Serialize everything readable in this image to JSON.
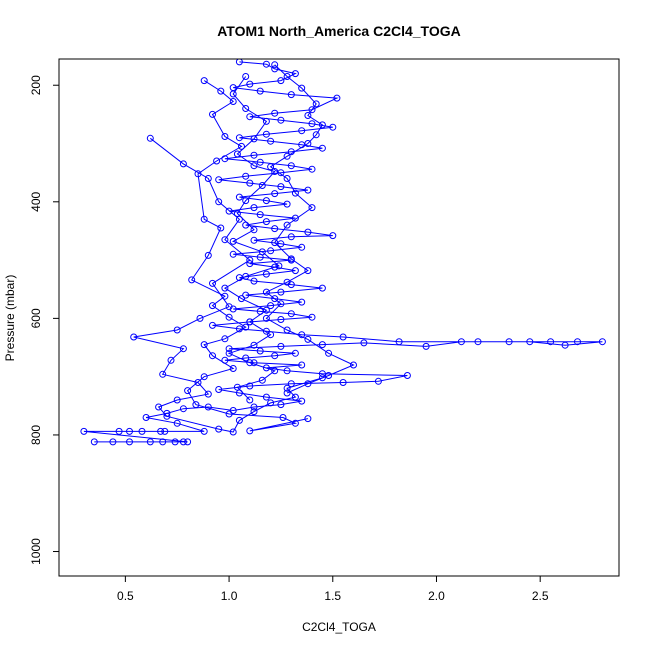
{
  "chart_data": {
    "type": "line",
    "title": "ATOM1 North_America C2Cl4_TOGA",
    "xlabel": "C2Cl4_TOGA",
    "ylabel": "Pressure (mbar)",
    "xlim": [
      0.18,
      2.88
    ],
    "ylim": [
      1042,
      155
    ],
    "y_reversed": true,
    "x_ticks": [
      0.5,
      1.0,
      1.5,
      2.0,
      2.5
    ],
    "x_tick_labels": [
      "0.5",
      "1.0",
      "1.5",
      "2.0",
      "2.5"
    ],
    "y_ticks": [
      200,
      400,
      600,
      800,
      1000
    ],
    "y_tick_labels": [
      "200",
      "400",
      "600",
      "800",
      "1000"
    ],
    "series_color": "#0000ff",
    "marker": "open-circle",
    "grid": false,
    "legend": "none",
    "series": [
      {
        "points": [
          [
            0.35,
            812
          ],
          [
            0.44,
            812
          ],
          [
            0.52,
            812
          ],
          [
            0.62,
            812
          ],
          [
            0.68,
            812
          ],
          [
            0.74,
            812
          ],
          [
            0.78,
            812
          ],
          [
            0.8,
            812
          ],
          [
            0.3,
            794
          ],
          [
            0.47,
            794
          ],
          [
            0.52,
            794
          ],
          [
            0.58,
            794
          ],
          [
            0.67,
            794
          ],
          [
            0.69,
            794
          ],
          [
            0.88,
            794
          ],
          [
            0.75,
            780
          ],
          [
            0.6,
            770
          ],
          [
            0.7,
            763
          ],
          [
            0.78,
            755
          ],
          [
            0.9,
            752
          ],
          [
            1.02,
            758
          ],
          [
            1.12,
            752
          ],
          [
            1.25,
            748
          ],
          [
            1.35,
            742
          ],
          [
            1.18,
            735
          ],
          [
            1.05,
            728
          ],
          [
            0.95,
            722
          ],
          [
            1.1,
            716
          ],
          [
            1.3,
            712
          ],
          [
            1.55,
            710
          ],
          [
            1.72,
            708
          ],
          [
            1.86,
            698
          ],
          [
            1.45,
            695
          ],
          [
            1.28,
            690
          ],
          [
            1.18,
            685
          ],
          [
            1.35,
            680
          ],
          [
            1.12,
            676
          ],
          [
            0.98,
            672
          ],
          [
            1.08,
            668
          ],
          [
            1.22,
            664
          ],
          [
            1.32,
            660
          ],
          [
            1.15,
            656
          ],
          [
            1.0,
            652
          ],
          [
            1.25,
            648
          ],
          [
            1.45,
            645
          ],
          [
            1.65,
            642
          ],
          [
            1.95,
            648
          ],
          [
            2.12,
            640
          ],
          [
            2.35,
            640
          ],
          [
            2.55,
            640
          ],
          [
            2.68,
            640
          ],
          [
            2.8,
            640
          ],
          [
            2.62,
            646
          ],
          [
            2.45,
            640
          ],
          [
            2.2,
            640
          ],
          [
            1.82,
            640
          ],
          [
            1.55,
            632
          ],
          [
            1.35,
            628
          ],
          [
            1.18,
            622
          ],
          [
            1.05,
            618
          ],
          [
            0.92,
            612
          ],
          [
            1.1,
            606
          ],
          [
            1.25,
            602
          ],
          [
            1.4,
            598
          ],
          [
            1.3,
            592
          ],
          [
            1.15,
            588
          ],
          [
            1.02,
            584
          ],
          [
            1.2,
            578
          ],
          [
            1.35,
            572
          ],
          [
            1.22,
            566
          ],
          [
            1.08,
            560
          ],
          [
            1.25,
            555
          ],
          [
            1.45,
            548
          ],
          [
            1.3,
            542
          ],
          [
            1.12,
            536
          ],
          [
            1.05,
            530
          ],
          [
            1.18,
            524
          ],
          [
            1.32,
            518
          ],
          [
            1.22,
            512
          ],
          [
            1.1,
            506
          ],
          [
            1.3,
            500
          ],
          [
            1.15,
            495
          ],
          [
            1.02,
            490
          ],
          [
            1.2,
            484
          ],
          [
            1.35,
            478
          ],
          [
            1.25,
            472
          ],
          [
            1.12,
            466
          ],
          [
            1.3,
            460
          ],
          [
            1.5,
            458
          ],
          [
            1.38,
            452
          ],
          [
            1.22,
            446
          ],
          [
            1.08,
            440
          ],
          [
            1.18,
            434
          ],
          [
            1.32,
            428
          ],
          [
            1.15,
            422
          ],
          [
            1.0,
            416
          ],
          [
            1.12,
            410
          ],
          [
            1.28,
            404
          ],
          [
            1.18,
            398
          ],
          [
            1.05,
            392
          ],
          [
            1.22,
            386
          ],
          [
            1.38,
            380
          ],
          [
            1.25,
            374
          ],
          [
            1.1,
            368
          ],
          [
            0.95,
            362
          ],
          [
            1.08,
            356
          ],
          [
            1.25,
            350
          ],
          [
            1.4,
            344
          ],
          [
            1.3,
            338
          ],
          [
            1.15,
            332
          ],
          [
            0.98,
            326
          ],
          [
            1.12,
            320
          ],
          [
            1.3,
            314
          ],
          [
            1.45,
            308
          ],
          [
            1.35,
            302
          ],
          [
            1.2,
            296
          ],
          [
            1.05,
            290
          ],
          [
            1.18,
            284
          ],
          [
            1.35,
            278
          ],
          [
            1.5,
            272
          ],
          [
            1.4,
            266
          ],
          [
            1.25,
            260
          ],
          [
            1.1,
            254
          ],
          [
            1.22,
            248
          ],
          [
            1.4,
            242
          ],
          [
            1.52,
            222
          ],
          [
            1.3,
            216
          ],
          [
            1.15,
            210
          ],
          [
            1.02,
            204
          ],
          [
            1.1,
            198
          ],
          [
            1.25,
            192
          ],
          [
            1.32,
            180
          ],
          [
            1.22,
            172
          ],
          [
            1.18,
            164
          ],
          [
            1.05,
            160
          ]
        ]
      },
      {
        "points": [
          [
            0.62,
            291
          ],
          [
            0.78,
            335
          ],
          [
            0.9,
            360
          ],
          [
            0.95,
            400
          ],
          [
            1.05,
            430
          ],
          [
            0.98,
            465
          ],
          [
            1.1,
            500
          ],
          [
            0.92,
            540
          ],
          [
            1.0,
            580
          ],
          [
            0.86,
            600
          ],
          [
            0.75,
            620
          ],
          [
            0.54,
            632
          ],
          [
            0.78,
            652
          ],
          [
            0.72,
            672
          ],
          [
            0.68,
            696
          ],
          [
            0.85,
            710
          ],
          [
            0.9,
            730
          ],
          [
            0.75,
            740
          ],
          [
            0.66,
            752
          ],
          [
            0.7,
            768
          ],
          [
            0.95,
            790
          ],
          [
            1.02,
            795
          ],
          [
            1.05,
            775
          ],
          [
            1.12,
            760
          ],
          [
            1.2,
            745
          ],
          [
            1.32,
            735
          ],
          [
            1.28,
            720
          ],
          [
            1.45,
            702
          ]
        ]
      },
      {
        "points": [
          [
            0.88,
            192
          ],
          [
            0.96,
            210
          ],
          [
            1.02,
            228
          ],
          [
            0.92,
            250
          ],
          [
            0.98,
            288
          ],
          [
            1.06,
            305
          ],
          [
            0.94,
            330
          ],
          [
            0.85,
            352
          ],
          [
            0.88,
            430
          ],
          [
            0.96,
            445
          ],
          [
            0.9,
            492
          ],
          [
            0.82,
            534
          ],
          [
            0.98,
            562
          ],
          [
            0.92,
            578
          ],
          [
            1.0,
            598
          ],
          [
            1.08,
            615
          ],
          [
            0.98,
            635
          ],
          [
            0.88,
            645
          ],
          [
            0.92,
            664
          ],
          [
            1.02,
            686
          ],
          [
            0.88,
            700
          ],
          [
            0.8,
            724
          ],
          [
            0.84,
            748
          ],
          [
            1.0,
            764
          ],
          [
            1.26,
            770
          ],
          [
            1.32,
            780
          ],
          [
            1.1,
            793
          ],
          [
            1.38,
            772
          ]
        ]
      },
      {
        "points": [
          [
            1.22,
            165
          ],
          [
            1.28,
            185
          ],
          [
            1.35,
            205
          ],
          [
            1.42,
            232
          ],
          [
            1.38,
            252
          ],
          [
            1.45,
            268
          ],
          [
            1.42,
            285
          ],
          [
            1.38,
            300
          ],
          [
            1.28,
            322
          ],
          [
            1.2,
            340
          ],
          [
            1.28,
            360
          ],
          [
            1.32,
            385
          ],
          [
            1.4,
            410
          ],
          [
            1.28,
            440
          ],
          [
            1.22,
            470
          ],
          [
            1.3,
            498
          ],
          [
            1.38,
            518
          ],
          [
            1.28,
            538
          ],
          [
            1.18,
            555
          ],
          [
            1.25,
            575
          ],
          [
            1.18,
            600
          ],
          [
            1.28,
            620
          ],
          [
            1.38,
            636
          ],
          [
            1.48,
            660
          ],
          [
            1.6,
            680
          ],
          [
            1.48,
            698
          ],
          [
            1.38,
            712
          ],
          [
            1.28,
            728
          ]
        ]
      },
      {
        "points": [
          [
            1.08,
            185
          ],
          [
            1.02,
            215
          ],
          [
            1.08,
            240
          ],
          [
            1.18,
            262
          ],
          [
            1.12,
            292
          ],
          [
            1.04,
            318
          ],
          [
            1.12,
            338
          ],
          [
            1.22,
            348
          ],
          [
            1.16,
            372
          ],
          [
            1.08,
            398
          ],
          [
            1.04,
            420
          ],
          [
            1.12,
            448
          ],
          [
            1.02,
            468
          ],
          [
            1.16,
            486
          ],
          [
            1.24,
            510
          ],
          [
            1.08,
            528
          ],
          [
            0.98,
            548
          ],
          [
            1.06,
            566
          ],
          [
            1.18,
            586
          ],
          [
            1.1,
            606
          ],
          [
            1.2,
            628
          ],
          [
            1.12,
            646
          ],
          [
            1.0,
            660
          ],
          [
            1.1,
            676
          ],
          [
            1.22,
            690
          ],
          [
            1.16,
            706
          ],
          [
            1.04,
            718
          ],
          [
            1.1,
            740
          ]
        ]
      }
    ]
  }
}
